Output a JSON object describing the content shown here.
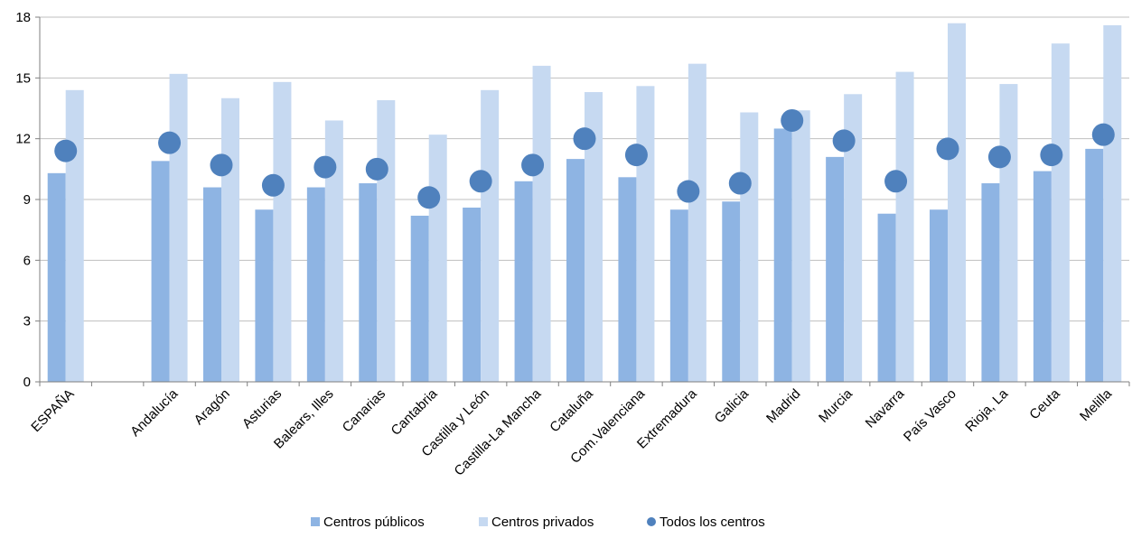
{
  "chart_data": {
    "type": "bar",
    "categories": [
      "ESPAÑA",
      "",
      "Andalucía",
      "Aragón",
      "Asturias",
      "Balears, Illes",
      "Canarias",
      "Cantabria",
      "Castilla y León",
      "Castilla-La Mancha",
      "Cataluña",
      "Com.Valenciana",
      "Extremadura",
      "Galicia",
      "Madrid",
      "Murcia",
      "Navarra",
      "País Vasco",
      "Rioja, La",
      "Ceuta",
      "Melilla"
    ],
    "series": [
      {
        "name": "Centros públicos",
        "kind": "bar",
        "color": "#8eb4e3",
        "values": [
          10.3,
          null,
          10.9,
          9.6,
          8.5,
          9.6,
          9.8,
          8.2,
          8.6,
          9.9,
          11.0,
          10.1,
          8.5,
          8.9,
          12.5,
          11.1,
          8.3,
          8.5,
          9.8,
          10.4,
          11.5
        ]
      },
      {
        "name": "Centros privados",
        "kind": "bar",
        "color": "#c6d9f1",
        "values": [
          14.4,
          null,
          15.2,
          14.0,
          14.8,
          12.9,
          13.9,
          12.2,
          14.4,
          15.6,
          14.3,
          14.6,
          15.7,
          13.3,
          13.4,
          14.2,
          15.3,
          17.7,
          14.7,
          16.7,
          17.6
        ]
      },
      {
        "name": "Todos los centros",
        "kind": "point",
        "color": "#4f81bd",
        "values": [
          11.4,
          null,
          11.8,
          10.7,
          9.7,
          10.6,
          10.5,
          9.1,
          9.9,
          10.7,
          12.0,
          11.2,
          9.4,
          9.8,
          12.9,
          11.9,
          9.9,
          11.5,
          11.1,
          11.2,
          12.2
        ]
      }
    ],
    "yticks": [
      "0",
      "3",
      "6",
      "9",
      "12",
      "15",
      "18"
    ],
    "ylim": [
      0,
      18
    ],
    "grid": true,
    "legend_position": "bottom-center",
    "title": "",
    "xlabel": "",
    "ylabel": ""
  }
}
